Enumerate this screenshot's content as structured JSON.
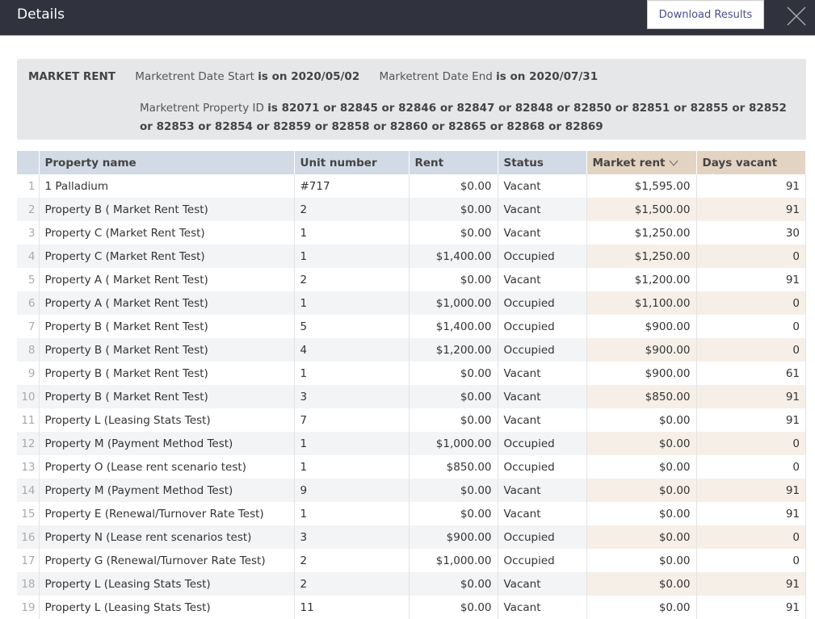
{
  "header": {
    "title": "Details",
    "download_label": "Download Results",
    "close_icon": "close-icon"
  },
  "filter": {
    "section": "MARKET RENT",
    "start_label": "Marketrent Date Start",
    "start_value": "is on 2020/05/02",
    "end_label": "Marketrent Date End",
    "end_value": "is on 2020/07/31",
    "prop_label": "Marketrent Property ID",
    "prop_value": "is 82071 or 82845 or 82846 or 82847 or 82848 or 82850 or 82851 or 82855 or 82852 or 82853 or 82854 or 82859 or 82858 or 82860 or 82865 or 82868 or 82869"
  },
  "table": {
    "columns": [
      "",
      "Property name",
      "Unit number",
      "Rent",
      "Status",
      "Market rent",
      "Days vacant"
    ],
    "sort_icon": "chevron-down-icon",
    "rows": [
      [
        "1",
        "1 Palladium",
        "#717",
        "$0.00",
        "Vacant",
        "$1,595.00",
        "91"
      ],
      [
        "2",
        "Property B ( Market Rent Test)",
        "2",
        "$0.00",
        "Vacant",
        "$1,500.00",
        "91"
      ],
      [
        "3",
        "Property C (Market Rent Test)",
        "1",
        "$0.00",
        "Vacant",
        "$1,250.00",
        "30"
      ],
      [
        "4",
        "Property C (Market Rent Test)",
        "1",
        "$1,400.00",
        "Occupied",
        "$1,250.00",
        "0"
      ],
      [
        "5",
        "Property A ( Market Rent Test)",
        "2",
        "$0.00",
        "Vacant",
        "$1,200.00",
        "91"
      ],
      [
        "6",
        "Property A ( Market Rent Test)",
        "1",
        "$1,000.00",
        "Occupied",
        "$1,100.00",
        "0"
      ],
      [
        "7",
        "Property B ( Market Rent Test)",
        "5",
        "$1,400.00",
        "Occupied",
        "$900.00",
        "0"
      ],
      [
        "8",
        "Property B ( Market Rent Test)",
        "4",
        "$1,200.00",
        "Occupied",
        "$900.00",
        "0"
      ],
      [
        "9",
        "Property B ( Market Rent Test)",
        "1",
        "$0.00",
        "Vacant",
        "$900.00",
        "61"
      ],
      [
        "10",
        "Property B ( Market Rent Test)",
        "3",
        "$0.00",
        "Vacant",
        "$850.00",
        "91"
      ],
      [
        "11",
        "Property L (Leasing Stats Test)",
        "7",
        "$0.00",
        "Vacant",
        "$0.00",
        "91"
      ],
      [
        "12",
        "Property M (Payment Method Test)",
        "1",
        "$1,000.00",
        "Occupied",
        "$0.00",
        "0"
      ],
      [
        "13",
        "Property O (Lease rent scenario test)",
        "1",
        "$850.00",
        "Occupied",
        "$0.00",
        "0"
      ],
      [
        "14",
        "Property M (Payment Method Test)",
        "9",
        "$0.00",
        "Vacant",
        "$0.00",
        "91"
      ],
      [
        "15",
        "Property E (Renewal/Turnover Rate Test)",
        "1",
        "$0.00",
        "Vacant",
        "$0.00",
        "91"
      ],
      [
        "16",
        "Property N (Lease rent scenarios test)",
        "3",
        "$900.00",
        "Occupied",
        "$0.00",
        "0"
      ],
      [
        "17",
        "Property G (Renewal/Turnover Rate Test)",
        "2",
        "$1,000.00",
        "Occupied",
        "$0.00",
        "0"
      ],
      [
        "18",
        "Property L (Leasing Stats Test)",
        "2",
        "$0.00",
        "Vacant",
        "$0.00",
        "91"
      ],
      [
        "19",
        "Property L (Leasing Stats Test)",
        "11",
        "$0.00",
        "Vacant",
        "$0.00",
        "91"
      ]
    ]
  }
}
